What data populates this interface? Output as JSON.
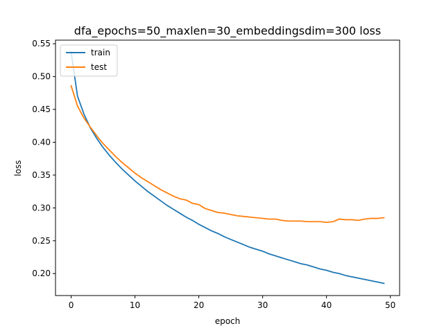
{
  "chart_data": {
    "type": "line",
    "title": "dfa_epochs=50_maxlen=30_embeddingsdim=300 loss",
    "xlabel": "epoch",
    "ylabel": "loss",
    "xlim": [
      -2.45,
      51.45
    ],
    "ylim": [
      0.1665,
      0.5555
    ],
    "xticks": [
      0,
      10,
      20,
      30,
      40,
      50
    ],
    "yticks": [
      0.2,
      0.25,
      0.3,
      0.35,
      0.4,
      0.45,
      0.5,
      0.55
    ],
    "ytick_labels": [
      "0.20",
      "0.25",
      "0.30",
      "0.35",
      "0.40",
      "0.45",
      "0.50",
      "0.55"
    ],
    "grid": false,
    "legend_position": "top-left",
    "x": [
      0,
      1,
      2,
      3,
      4,
      5,
      6,
      7,
      8,
      9,
      10,
      11,
      12,
      13,
      14,
      15,
      16,
      17,
      18,
      19,
      20,
      21,
      22,
      23,
      24,
      25,
      26,
      27,
      28,
      29,
      30,
      31,
      32,
      33,
      34,
      35,
      36,
      37,
      38,
      39,
      40,
      41,
      42,
      43,
      44,
      45,
      46,
      47,
      48,
      49
    ],
    "series": [
      {
        "name": "train",
        "color": "#1f77b4",
        "values": [
          0.537,
          0.47,
          0.443,
          0.422,
          0.406,
          0.392,
          0.38,
          0.369,
          0.359,
          0.35,
          0.341,
          0.333,
          0.325,
          0.318,
          0.311,
          0.304,
          0.298,
          0.292,
          0.286,
          0.281,
          0.275,
          0.27,
          0.265,
          0.261,
          0.256,
          0.252,
          0.248,
          0.244,
          0.24,
          0.237,
          0.234,
          0.23,
          0.227,
          0.224,
          0.221,
          0.218,
          0.215,
          0.213,
          0.21,
          0.207,
          0.205,
          0.202,
          0.2,
          0.197,
          0.195,
          0.193,
          0.191,
          0.189,
          0.187,
          0.185
        ]
      },
      {
        "name": "test",
        "color": "#ff7f0e",
        "values": [
          0.486,
          0.455,
          0.437,
          0.423,
          0.41,
          0.398,
          0.388,
          0.378,
          0.369,
          0.361,
          0.353,
          0.346,
          0.34,
          0.334,
          0.328,
          0.323,
          0.318,
          0.314,
          0.312,
          0.307,
          0.305,
          0.299,
          0.296,
          0.293,
          0.292,
          0.29,
          0.288,
          0.287,
          0.286,
          0.285,
          0.284,
          0.283,
          0.283,
          0.281,
          0.28,
          0.28,
          0.28,
          0.279,
          0.279,
          0.279,
          0.278,
          0.279,
          0.283,
          0.282,
          0.282,
          0.281,
          0.283,
          0.284,
          0.284,
          0.285
        ]
      }
    ]
  }
}
